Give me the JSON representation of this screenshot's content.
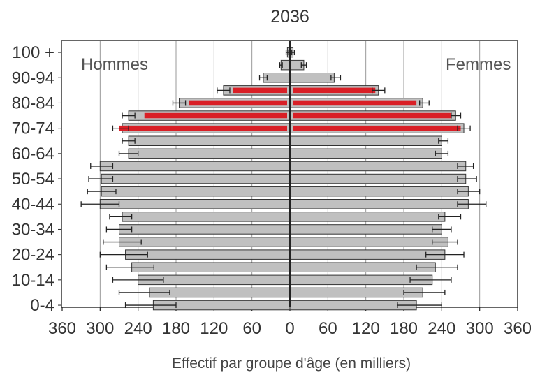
{
  "chart_data": {
    "type": "bar",
    "title": "2036",
    "xlabel": "Effectif par groupe d'âge (en milliers)",
    "left_label": "Hommes",
    "right_label": "Femmes",
    "x_ticks": [
      "360",
      "300",
      "240",
      "180",
      "120",
      "60",
      "0",
      "60",
      "120",
      "180",
      "240",
      "300",
      "360"
    ],
    "y_tick_labels": [
      "100 +",
      "90-94",
      "80-84",
      "70-74",
      "60-64",
      "50-54",
      "40-44",
      "30-34",
      "20-24",
      "10-14",
      "0-4"
    ],
    "xlim": [
      -360,
      360
    ],
    "age_groups": [
      "100+",
      "95-99",
      "90-94",
      "85-89",
      "80-84",
      "75-79",
      "70-74",
      "65-69",
      "60-64",
      "55-59",
      "50-54",
      "45-49",
      "40-44",
      "35-39",
      "30-34",
      "25-29",
      "20-24",
      "15-19",
      "10-14",
      "5-9",
      "0-4"
    ],
    "series": [
      {
        "name": "Hommes",
        "gray_total": [
          4,
          14,
          42,
          105,
          175,
          255,
          265,
          255,
          255,
          300,
          298,
          298,
          300,
          265,
          270,
          270,
          260,
          250,
          240,
          222,
          216
        ],
        "red_highlight": [
          0,
          0,
          0,
          90,
          160,
          230,
          270,
          0,
          0,
          0,
          0,
          0,
          0,
          0,
          0,
          0,
          0,
          0,
          0,
          0,
          0
        ],
        "error_low": [
          2,
          12,
          36,
          95,
          165,
          245,
          255,
          245,
          240,
          280,
          280,
          275,
          270,
          250,
          250,
          235,
          225,
          215,
          200,
          190,
          180
        ],
        "error_high": [
          6,
          16,
          48,
          115,
          185,
          265,
          280,
          265,
          270,
          315,
          318,
          320,
          330,
          285,
          290,
          295,
          300,
          290,
          280,
          270,
          260
        ]
      },
      {
        "name": "Femmes",
        "gray_total": [
          5,
          22,
          70,
          140,
          210,
          262,
          275,
          240,
          240,
          278,
          278,
          282,
          282,
          245,
          240,
          250,
          245,
          230,
          225,
          210,
          200
        ],
        "red_highlight": [
          0,
          0,
          0,
          135,
          200,
          255,
          270,
          0,
          0,
          0,
          0,
          0,
          0,
          0,
          0,
          0,
          0,
          0,
          0,
          0,
          0
        ],
        "error_low": [
          3,
          18,
          65,
          130,
          205,
          255,
          265,
          235,
          230,
          265,
          265,
          265,
          265,
          235,
          225,
          225,
          215,
          200,
          190,
          180,
          170
        ],
        "error_high": [
          7,
          26,
          80,
          150,
          220,
          270,
          285,
          250,
          250,
          290,
          295,
          300,
          310,
          270,
          255,
          265,
          275,
          265,
          255,
          245,
          240
        ]
      }
    ],
    "grid": "vertical",
    "colors": {
      "bar": "#c0c0c0",
      "bar_edge": "#333333",
      "highlight": "#d91f26",
      "axis": "#222222",
      "grid": "#999999"
    }
  }
}
